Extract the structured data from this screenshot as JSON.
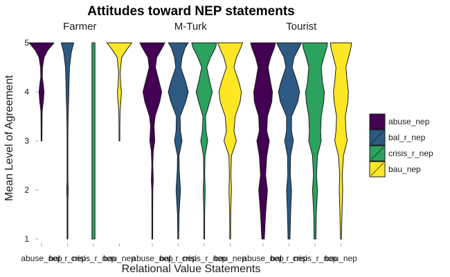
{
  "chart_data": {
    "type": "violin",
    "title": "Attitudes toward NEP statements",
    "xlabel": "Relational Value Statements",
    "ylabel": "Mean Level of Agreement",
    "ylim": [
      1,
      5
    ],
    "yticks": [
      "1",
      "2",
      "3",
      "4",
      "5"
    ],
    "grid": false,
    "legend_position": "right",
    "categories": [
      "abuse_nep",
      "bal_r_nep",
      "crisis_r_nep",
      "bau_nep"
    ],
    "colors": [
      "#440154",
      "#2c5a82",
      "#2ca25f",
      "#fde725"
    ],
    "facets": [
      {
        "name": "Farmer",
        "violins": [
          {
            "category": "abuse_nep",
            "min": 3,
            "max": 5,
            "profile": [
              [
                3,
                0.02
              ],
              [
                3.3,
                0.04
              ],
              [
                3.6,
                0.05
              ],
              [
                3.85,
                0.16
              ],
              [
                4.0,
                0.2
              ],
              [
                4.15,
                0.14
              ],
              [
                4.3,
                0.06
              ],
              [
                4.5,
                0.08
              ],
              [
                4.7,
                0.2
              ],
              [
                4.85,
                0.5
              ],
              [
                5,
                1.0
              ]
            ]
          },
          {
            "category": "bal_r_nep",
            "min": 1,
            "max": 5,
            "profile": [
              [
                1,
                0.02
              ],
              [
                1.8,
                0.02
              ],
              [
                2.0,
                0.06
              ],
              [
                2.2,
                0.02
              ],
              [
                3.0,
                0.02
              ],
              [
                3.3,
                0.04
              ],
              [
                3.6,
                0.06
              ],
              [
                3.9,
                0.1
              ],
              [
                4.2,
                0.12
              ],
              [
                4.5,
                0.16
              ],
              [
                4.8,
                0.3
              ],
              [
                5,
                0.5
              ]
            ]
          },
          {
            "category": "crisis_r_nep",
            "min": 1,
            "max": 5,
            "profile": [
              [
                1,
                0.12
              ],
              [
                1.5,
                0.12
              ],
              [
                2,
                0.12
              ],
              [
                3,
                0.12
              ],
              [
                4,
                0.12
              ],
              [
                4.5,
                0.12
              ],
              [
                5,
                0.12
              ]
            ]
          },
          {
            "category": "bau_nep",
            "min": 3,
            "max": 5,
            "profile": [
              [
                3,
                0.02
              ],
              [
                3.3,
                0.03
              ],
              [
                3.6,
                0.05
              ],
              [
                3.9,
                0.14
              ],
              [
                4.0,
                0.16
              ],
              [
                4.15,
                0.1
              ],
              [
                4.4,
                0.06
              ],
              [
                4.7,
                0.18
              ],
              [
                4.85,
                0.55
              ],
              [
                5,
                1.0
              ]
            ]
          }
        ]
      },
      {
        "name": "M-Turk",
        "violins": [
          {
            "category": "abuse_nep",
            "min": 1,
            "max": 5,
            "profile": [
              [
                1,
                0.02
              ],
              [
                1.5,
                0.02
              ],
              [
                2,
                0.04
              ],
              [
                2.2,
                0.08
              ],
              [
                2.5,
                0.04
              ],
              [
                2.8,
                0.08
              ],
              [
                3.0,
                0.2
              ],
              [
                3.3,
                0.14
              ],
              [
                3.5,
                0.22
              ],
              [
                3.8,
                0.6
              ],
              [
                4.0,
                0.75
              ],
              [
                4.2,
                0.55
              ],
              [
                4.5,
                0.25
              ],
              [
                4.7,
                0.35
              ],
              [
                4.9,
                0.8
              ],
              [
                5,
                1.0
              ]
            ]
          },
          {
            "category": "bal_r_nep",
            "min": 1,
            "max": 5,
            "profile": [
              [
                1,
                0.02
              ],
              [
                1.5,
                0.06
              ],
              [
                2,
                0.18
              ],
              [
                2.4,
                0.08
              ],
              [
                2.7,
                0.06
              ],
              [
                3.0,
                0.3
              ],
              [
                3.2,
                0.18
              ],
              [
                3.5,
                0.15
              ],
              [
                3.8,
                0.6
              ],
              [
                4.0,
                0.8
              ],
              [
                4.2,
                0.6
              ],
              [
                4.5,
                0.2
              ],
              [
                4.7,
                0.3
              ],
              [
                4.9,
                0.55
              ],
              [
                5,
                0.8
              ]
            ]
          },
          {
            "category": "crisis_r_nep",
            "min": 1,
            "max": 5,
            "profile": [
              [
                1,
                0.02
              ],
              [
                1.5,
                0.03
              ],
              [
                2,
                0.08
              ],
              [
                2.3,
                0.04
              ],
              [
                2.7,
                0.06
              ],
              [
                3.0,
                0.28
              ],
              [
                3.2,
                0.15
              ],
              [
                3.5,
                0.1
              ],
              [
                3.8,
                0.45
              ],
              [
                4.0,
                0.65
              ],
              [
                4.2,
                0.45
              ],
              [
                4.5,
                0.2
              ],
              [
                4.7,
                0.5
              ],
              [
                4.9,
                0.9
              ],
              [
                5,
                1.0
              ]
            ]
          },
          {
            "category": "bau_nep",
            "min": 1,
            "max": 5,
            "profile": [
              [
                1,
                0.02
              ],
              [
                1.5,
                0.04
              ],
              [
                2,
                0.1
              ],
              [
                2.3,
                0.06
              ],
              [
                2.7,
                0.1
              ],
              [
                3.0,
                0.5
              ],
              [
                3.2,
                0.3
              ],
              [
                3.5,
                0.4
              ],
              [
                3.8,
                0.8
              ],
              [
                4.0,
                0.9
              ],
              [
                4.2,
                0.7
              ],
              [
                4.5,
                0.3
              ],
              [
                4.7,
                0.5
              ],
              [
                4.9,
                0.85
              ],
              [
                5,
                1.0
              ]
            ]
          }
        ]
      },
      {
        "name": "Tourist",
        "violins": [
          {
            "category": "abuse_nep",
            "min": 1,
            "max": 5,
            "profile": [
              [
                1,
                0.1
              ],
              [
                1.5,
                0.2
              ],
              [
                2,
                0.35
              ],
              [
                2.3,
                0.2
              ],
              [
                2.7,
                0.3
              ],
              [
                3.0,
                0.5
              ],
              [
                3.2,
                0.3
              ],
              [
                3.5,
                0.35
              ],
              [
                3.8,
                0.7
              ],
              [
                4.0,
                0.75
              ],
              [
                4.2,
                0.6
              ],
              [
                4.5,
                0.4
              ],
              [
                4.7,
                0.6
              ],
              [
                4.9,
                0.9
              ],
              [
                5,
                1.0
              ]
            ]
          },
          {
            "category": "bal_r_nep",
            "min": 1,
            "max": 5,
            "profile": [
              [
                1,
                0.08
              ],
              [
                1.5,
                0.12
              ],
              [
                2,
                0.2
              ],
              [
                2.3,
                0.1
              ],
              [
                2.7,
                0.12
              ],
              [
                3.0,
                0.35
              ],
              [
                3.2,
                0.2
              ],
              [
                3.5,
                0.2
              ],
              [
                3.8,
                0.7
              ],
              [
                4.0,
                0.85
              ],
              [
                4.2,
                0.65
              ],
              [
                4.5,
                0.25
              ],
              [
                4.7,
                0.4
              ],
              [
                4.9,
                0.8
              ],
              [
                5,
                1.0
              ]
            ]
          },
          {
            "category": "crisis_r_nep",
            "min": 1,
            "max": 5,
            "profile": [
              [
                1,
                0.08
              ],
              [
                1.5,
                0.1
              ],
              [
                2,
                0.2
              ],
              [
                2.3,
                0.12
              ],
              [
                2.7,
                0.2
              ],
              [
                3.0,
                0.5
              ],
              [
                3.2,
                0.45
              ],
              [
                3.5,
                0.5
              ],
              [
                3.8,
                0.7
              ],
              [
                4.0,
                0.75
              ],
              [
                4.2,
                0.6
              ],
              [
                4.5,
                0.5
              ],
              [
                4.7,
                0.7
              ],
              [
                4.9,
                0.95
              ],
              [
                5,
                1.0
              ]
            ]
          },
          {
            "category": "bau_nep",
            "min": 1,
            "max": 5,
            "profile": [
              [
                1,
                0.04
              ],
              [
                1.3,
                0.06
              ],
              [
                1.7,
                0.1
              ],
              [
                2,
                0.14
              ],
              [
                2.3,
                0.1
              ],
              [
                2.7,
                0.2
              ],
              [
                3.0,
                0.5
              ],
              [
                3.2,
                0.4
              ],
              [
                3.5,
                0.35
              ],
              [
                3.8,
                0.55
              ],
              [
                4.0,
                0.6
              ],
              [
                4.2,
                0.5
              ],
              [
                4.5,
                0.4
              ],
              [
                4.7,
                0.6
              ],
              [
                4.9,
                0.8
              ],
              [
                5,
                0.85
              ]
            ]
          }
        ]
      }
    ]
  }
}
